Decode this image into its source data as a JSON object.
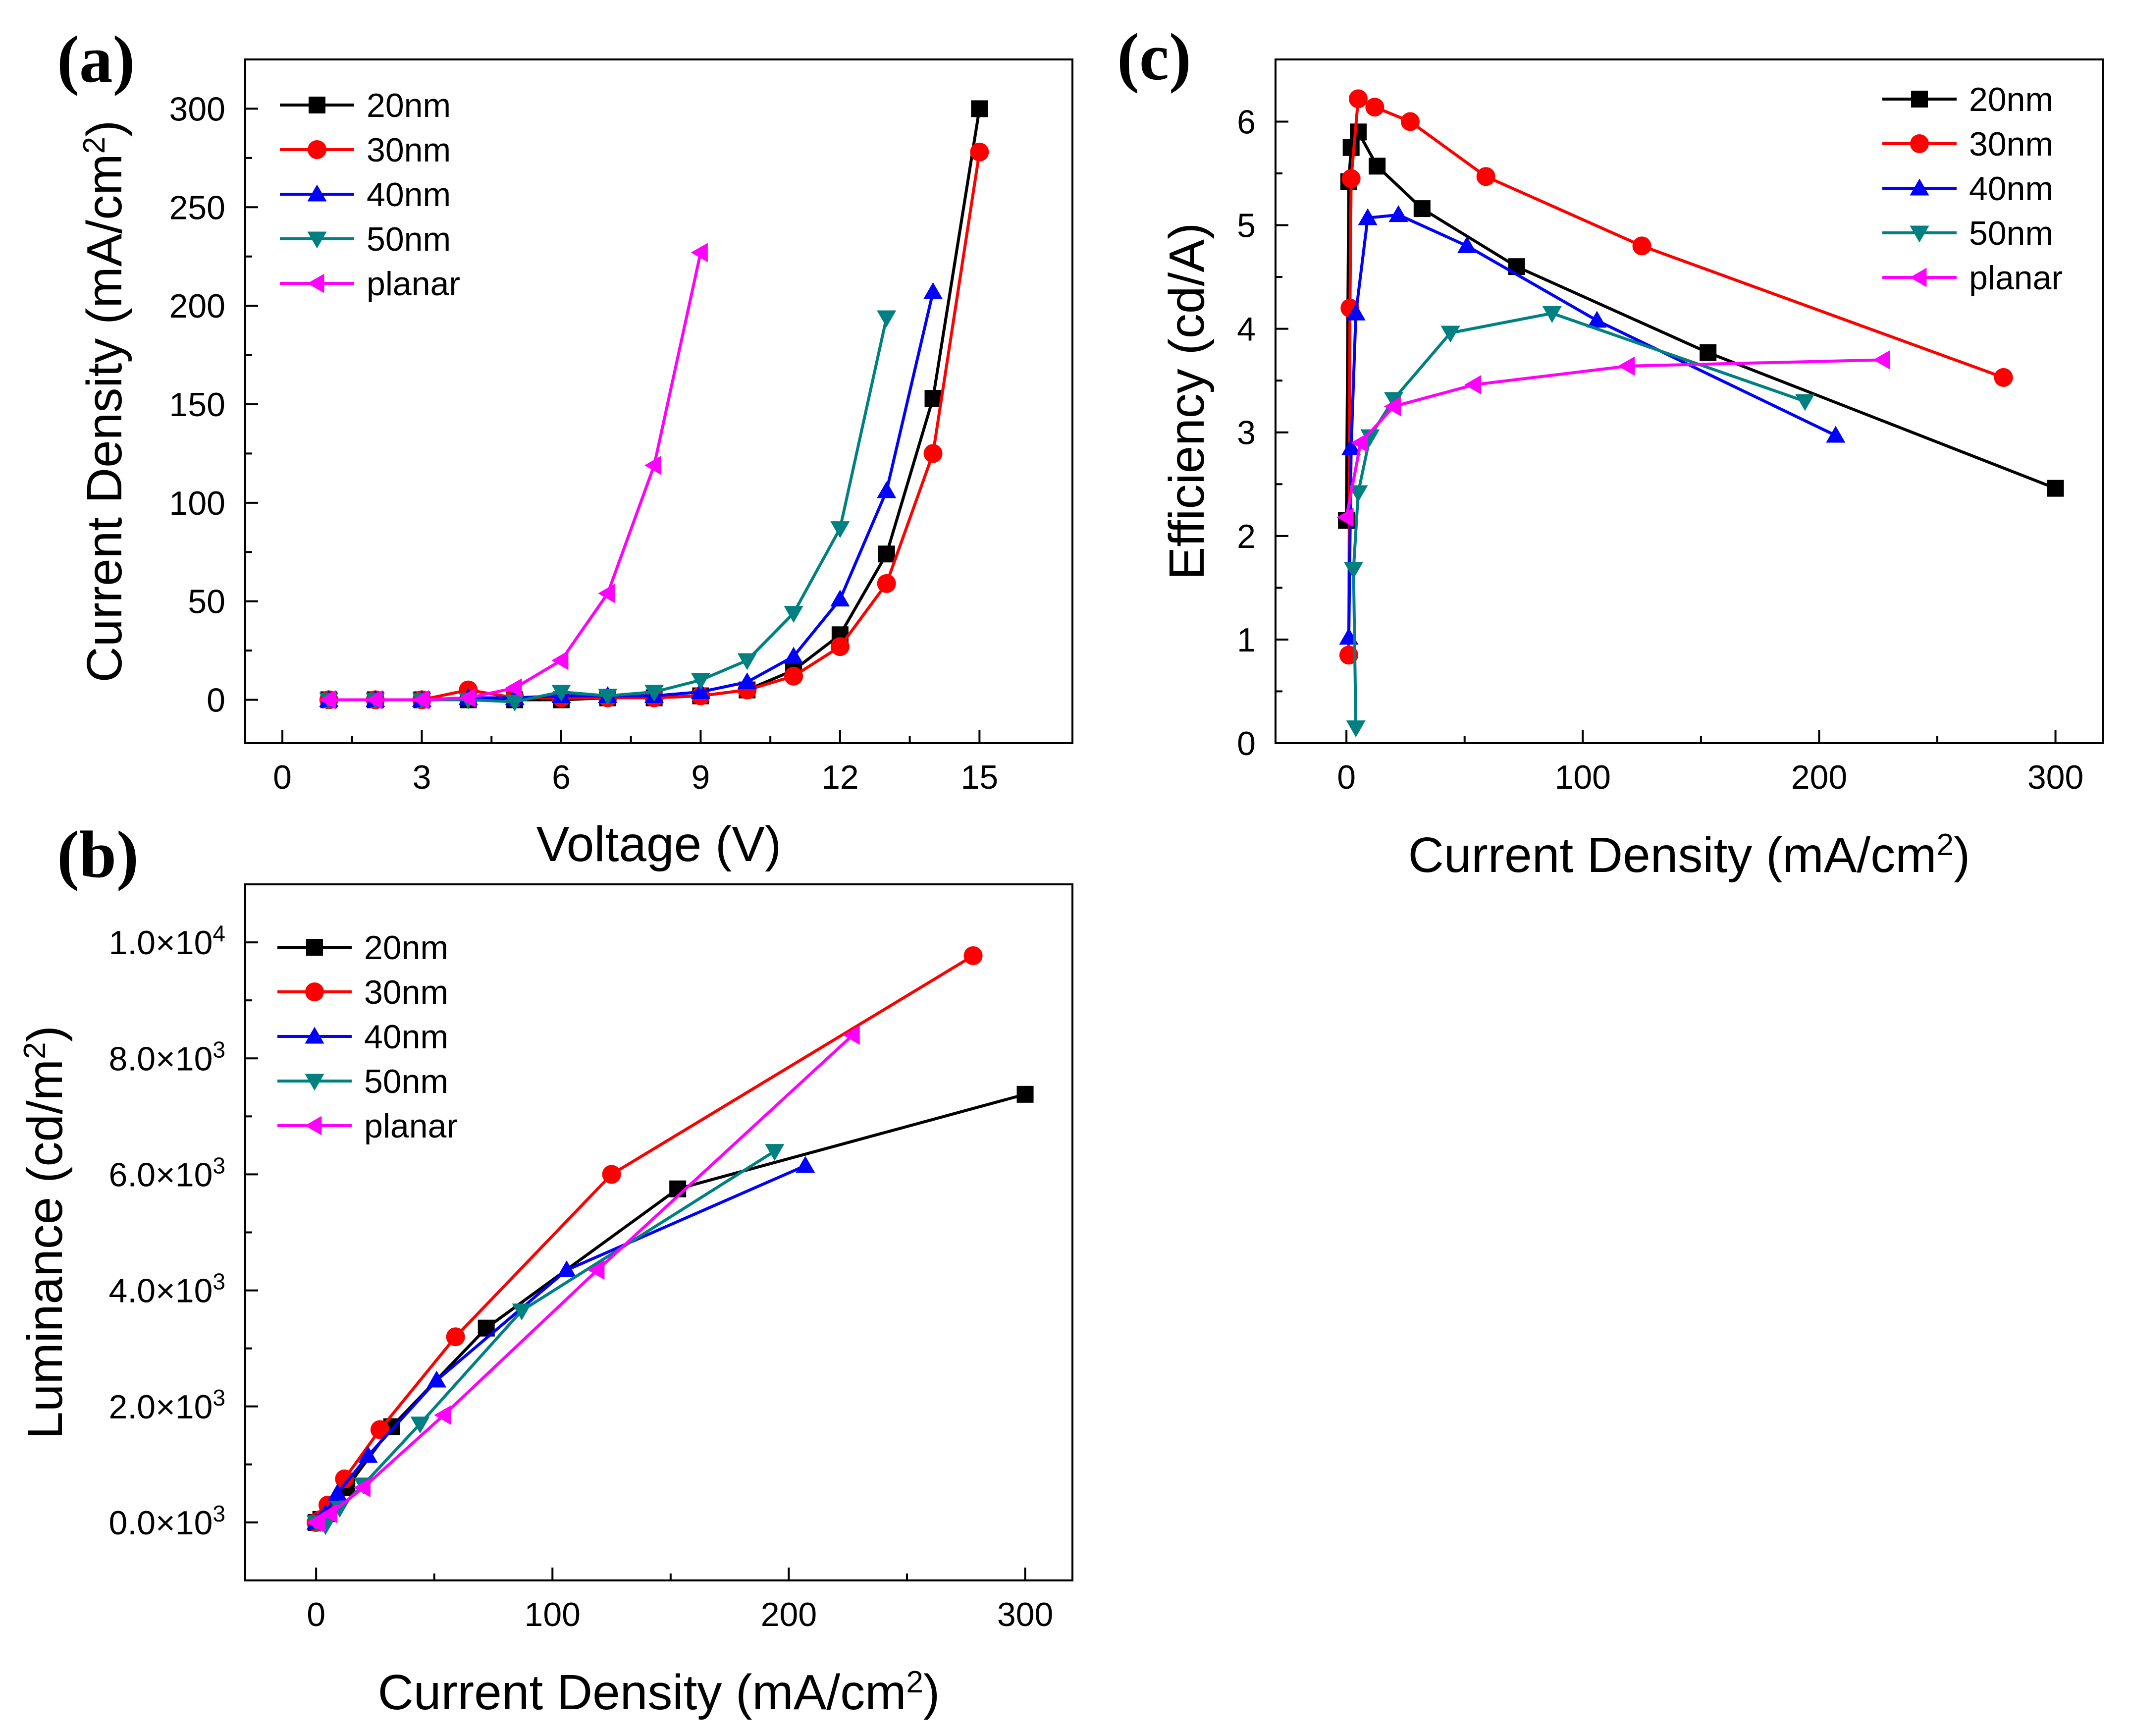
{
  "figure": {
    "panels": [
      "(a)",
      "(b)",
      "(c)"
    ]
  },
  "colors": {
    "20nm": "#000000",
    "30nm": "#ff0000",
    "40nm": "#0000ff",
    "50nm": "#008080",
    "planar": "#ff00ff"
  },
  "chart_data": [
    {
      "id": "a",
      "panel_label": "(a)",
      "type": "line",
      "xlabel": "Voltage (V)",
      "ylabel": "Current Density (mA/cm²)",
      "ylabel_parts": [
        "Current Density (mA/cm",
        "2",
        ")"
      ],
      "xlim": [
        -0.8,
        17
      ],
      "ylim": [
        -22,
        325
      ],
      "xticks": [
        0,
        3,
        6,
        9,
        12,
        15
      ],
      "xtick_labels": [
        "0",
        "3",
        "6",
        "9",
        "12",
        "15"
      ],
      "yticks": [
        0,
        50,
        100,
        150,
        200,
        250,
        300
      ],
      "ytick_labels": [
        "0",
        "50",
        "100",
        "150",
        "200",
        "250",
        "300"
      ],
      "legend_position": "top-left",
      "series": [
        {
          "name": "20nm",
          "marker": "square",
          "x": [
            1,
            2,
            3,
            4,
            5,
            6,
            7,
            8,
            9,
            10,
            11,
            12,
            13,
            14,
            15
          ],
          "y": [
            0,
            0,
            0,
            0,
            0,
            0,
            1,
            1,
            2,
            5,
            15,
            33,
            74,
            153,
            300
          ]
        },
        {
          "name": "30nm",
          "marker": "circle",
          "x": [
            1,
            2,
            3,
            4,
            5,
            6,
            7,
            8,
            9,
            10,
            11,
            12,
            13,
            14,
            15
          ],
          "y": [
            0,
            0,
            0,
            5,
            1,
            1,
            1,
            1,
            2,
            5,
            12,
            27,
            59,
            125,
            278
          ]
        },
        {
          "name": "40nm",
          "marker": "triangle-up",
          "x": [
            1,
            2,
            3,
            4,
            5,
            6,
            7,
            8,
            9,
            10,
            11,
            12,
            13,
            14
          ],
          "y": [
            0,
            0,
            0,
            1,
            1,
            2,
            2,
            2,
            4,
            9,
            22,
            51,
            106,
            207
          ]
        },
        {
          "name": "50nm",
          "marker": "triangle-down",
          "x": [
            1,
            2,
            3,
            4,
            5,
            6,
            7,
            8,
            9,
            10,
            11,
            12,
            13
          ],
          "y": [
            0,
            0,
            0,
            0,
            -1,
            4,
            2,
            4,
            10,
            20,
            44,
            87,
            194
          ]
        },
        {
          "name": "planar",
          "marker": "triangle-left",
          "x": [
            1,
            2,
            3,
            4,
            5,
            6,
            7,
            8,
            9
          ],
          "y": [
            0,
            0,
            0,
            1,
            6,
            20,
            54,
            119,
            227
          ]
        }
      ]
    },
    {
      "id": "b",
      "panel_label": "(b)",
      "type": "line",
      "xlabel": "Current Density (mA/cm²)",
      "xlabel_parts": [
        "Current Density (mA/cm",
        "2",
        ")"
      ],
      "ylabel": "Luminance (cd/m²)",
      "ylabel_parts": [
        "Luminance (cd/m",
        "2",
        ")"
      ],
      "xlim": [
        -30,
        320
      ],
      "ylim": [
        -1000,
        11000
      ],
      "xticks": [
        0,
        100,
        200,
        300
      ],
      "xtick_labels": [
        "0",
        "100",
        "200",
        "300"
      ],
      "yticks": [
        0,
        2000,
        4000,
        6000,
        8000,
        10000
      ],
      "ytick_mantissas": [
        "0.0×10",
        "2.0×10",
        "4.0×10",
        "6.0×10",
        "8.0×10",
        "1.0×10"
      ],
      "ytick_exponents": [
        "3",
        "3",
        "3",
        "3",
        "3",
        "4"
      ],
      "legend_position": "top-left",
      "series": [
        {
          "name": "20nm",
          "marker": "square",
          "x": [
            0,
            2,
            5,
            13,
            32,
            72,
            153,
            300
          ],
          "y": [
            0,
            50,
            150,
            600,
            1650,
            3350,
            5750,
            7380
          ]
        },
        {
          "name": "30nm",
          "marker": "circle",
          "x": [
            0,
            2,
            5,
            12,
            27,
            59,
            125,
            278
          ],
          "y": [
            0,
            50,
            300,
            750,
            1600,
            3200,
            6000,
            9770
          ]
        },
        {
          "name": "40nm",
          "marker": "triangle-up",
          "x": [
            0,
            2,
            4,
            9,
            22,
            51,
            106,
            207
          ],
          "y": [
            0,
            40,
            150,
            500,
            1150,
            2450,
            4350,
            6150
          ]
        },
        {
          "name": "50nm",
          "marker": "triangle-down",
          "x": [
            0,
            2,
            4,
            10,
            20,
            44,
            87,
            194
          ],
          "y": [
            0,
            0,
            -50,
            250,
            650,
            1700,
            3650,
            6400
          ]
        },
        {
          "name": "planar",
          "marker": "triangle-left",
          "x": [
            0,
            1,
            6,
            20,
            54,
            119,
            227
          ],
          "y": [
            0,
            10,
            150,
            600,
            1850,
            4350,
            8400
          ]
        }
      ]
    },
    {
      "id": "c",
      "panel_label": "(c)",
      "type": "line",
      "xlabel": "Current Density (mA/cm²)",
      "xlabel_parts": [
        "Current Density (mA/cm",
        "2",
        ")"
      ],
      "ylabel": "Efficiency (cd/A)",
      "xlim": [
        -30,
        320
      ],
      "ylim": [
        0,
        6.6
      ],
      "xticks": [
        0,
        100,
        200,
        300
      ],
      "xtick_labels": [
        "0",
        "100",
        "200",
        "300"
      ],
      "yticks": [
        0,
        1,
        2,
        3,
        4,
        5,
        6
      ],
      "ytick_labels": [
        "0",
        "1",
        "2",
        "3",
        "4",
        "5",
        "6"
      ],
      "legend_position": "top-right",
      "series": [
        {
          "name": "20nm",
          "marker": "square",
          "x": [
            0,
            1,
            2,
            5,
            13,
            32,
            72,
            153,
            300
          ],
          "y": [
            2.15,
            5.42,
            5.75,
            5.9,
            5.57,
            5.16,
            4.6,
            3.77,
            2.46
          ]
        },
        {
          "name": "30nm",
          "marker": "circle",
          "x": [
            1,
            1.5,
            2,
            5,
            12,
            27,
            59,
            125,
            278
          ],
          "y": [
            0.85,
            4.2,
            5.45,
            6.22,
            6.14,
            6.0,
            5.47,
            4.8,
            3.53
          ]
        },
        {
          "name": "40nm",
          "marker": "triangle-up",
          "x": [
            1,
            2,
            4,
            9,
            22,
            51,
            106,
            207
          ],
          "y": [
            1.02,
            2.85,
            4.15,
            5.07,
            5.1,
            4.8,
            4.08,
            2.97
          ]
        },
        {
          "name": "50nm",
          "marker": "triangle-down",
          "x": [
            4,
            3,
            5,
            10,
            20,
            44,
            87,
            194
          ],
          "y": [
            0.15,
            1.68,
            2.42,
            2.96,
            3.32,
            3.96,
            4.15,
            3.3
          ]
        },
        {
          "name": "planar",
          "marker": "triangle-left",
          "x": [
            0,
            6,
            20,
            54,
            119,
            227
          ],
          "y": [
            2.18,
            2.9,
            3.25,
            3.46,
            3.64,
            3.7
          ]
        }
      ]
    }
  ]
}
